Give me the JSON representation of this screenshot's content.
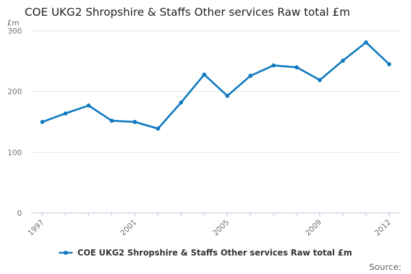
{
  "header": {
    "title": "COE UKG2 Shropshire & Staffs Other services Raw total £m"
  },
  "chart_data": {
    "type": "line",
    "title": "COE UKG2 Shropshire & Staffs Other services Raw total £m",
    "unit_label": "£m",
    "xlabel": "",
    "ylabel": "£m",
    "x": [
      1997,
      1998,
      1999,
      2000,
      2001,
      2002,
      2003,
      2004,
      2005,
      2006,
      2007,
      2008,
      2009,
      2010,
      2011,
      2012
    ],
    "series": [
      {
        "name": "COE UKG2 Shropshire & Staffs Other services Raw total £m",
        "values": [
          150,
          164,
          177,
          152,
          150,
          139,
          182,
          228,
          193,
          226,
          243,
          240,
          219,
          251,
          281,
          245
        ]
      }
    ],
    "ylim": [
      0,
      300
    ],
    "yticks": [
      0,
      100,
      200,
      300
    ],
    "xticks": [
      {
        "index": 0,
        "label": "1997"
      },
      {
        "index": 4,
        "label": "2001"
      },
      {
        "index": 8,
        "label": "2005"
      },
      {
        "index": 12,
        "label": "2009"
      },
      {
        "index": 15,
        "label": "2012"
      }
    ],
    "grid": true,
    "legend_position": "bottom",
    "colors": {
      "line": "#0f7abf",
      "axis": "#b4c3de",
      "grid": "#e6e6e6",
      "tick_text": "#707070",
      "title_text": "#1f1f1f"
    }
  },
  "legend": {
    "label": "COE UKG2 Shropshire & Staffs Other services Raw total £m"
  },
  "footer": {
    "source_label": "Source:"
  }
}
